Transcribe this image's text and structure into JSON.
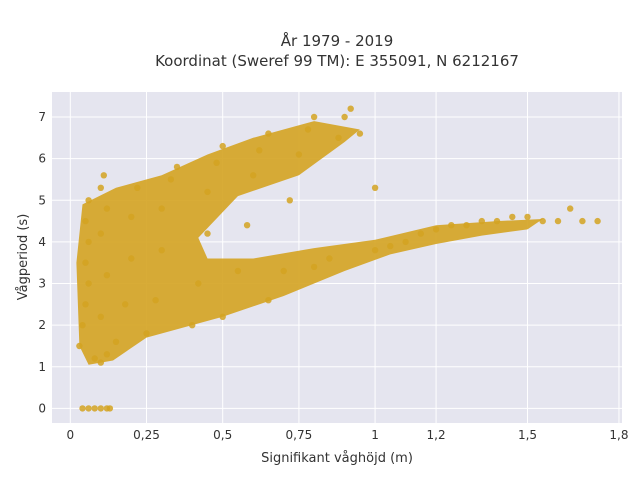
{
  "chart_data": {
    "type": "scatter",
    "title_line1": "År 1979 - 2019",
    "title_line2": "Koordinat (Sweref 99 TM): E 355091, N 6212167",
    "xlabel": "Signifikant våghöjd (m)",
    "ylabel": "Vågperiod (s)",
    "xlim": [
      -0.06,
      1.81
    ],
    "ylim": [
      -0.35,
      7.6
    ],
    "x_ticks": [
      0,
      0.25,
      0.5,
      0.75,
      1,
      1.2,
      1.5,
      1.8
    ],
    "x_tick_labels": [
      "0",
      "0,25",
      "0,5",
      "0,75",
      "1",
      "1,2",
      "1,5",
      "1,8"
    ],
    "y_ticks": [
      0,
      1,
      2,
      3,
      4,
      5,
      6,
      7
    ],
    "y_tick_labels": [
      "0",
      "1",
      "2",
      "3",
      "4",
      "5",
      "6",
      "7"
    ],
    "grid": true,
    "marker_color": "#d4a321",
    "background_color": "#e5e5ef",
    "series": [
      {
        "values": [
          [
            0.03,
            1.5
          ],
          [
            0.04,
            2.0
          ],
          [
            0.05,
            2.5
          ],
          [
            0.06,
            3.0
          ],
          [
            0.05,
            3.5
          ],
          [
            0.06,
            4.0
          ],
          [
            0.05,
            4.5
          ],
          [
            0.06,
            5.0
          ],
          [
            0.08,
            1.2
          ],
          [
            0.1,
            1.1
          ],
          [
            0.12,
            1.3
          ],
          [
            0.1,
            2.2
          ],
          [
            0.12,
            3.2
          ],
          [
            0.1,
            4.2
          ],
          [
            0.12,
            4.8
          ],
          [
            0.1,
            5.3
          ],
          [
            0.11,
            5.6
          ],
          [
            0.15,
            1.6
          ],
          [
            0.18,
            2.5
          ],
          [
            0.2,
            3.6
          ],
          [
            0.2,
            4.6
          ],
          [
            0.22,
            5.3
          ],
          [
            0.25,
            1.8
          ],
          [
            0.28,
            2.6
          ],
          [
            0.3,
            3.8
          ],
          [
            0.3,
            4.8
          ],
          [
            0.33,
            5.5
          ],
          [
            0.35,
            5.8
          ],
          [
            0.4,
            2.0
          ],
          [
            0.42,
            3.0
          ],
          [
            0.45,
            4.2
          ],
          [
            0.45,
            5.2
          ],
          [
            0.48,
            5.9
          ],
          [
            0.5,
            6.3
          ],
          [
            0.5,
            2.2
          ],
          [
            0.55,
            3.3
          ],
          [
            0.58,
            4.4
          ],
          [
            0.6,
            5.6
          ],
          [
            0.62,
            6.2
          ],
          [
            0.65,
            6.6
          ],
          [
            0.65,
            2.6
          ],
          [
            0.7,
            3.3
          ],
          [
            0.72,
            5.0
          ],
          [
            0.75,
            6.1
          ],
          [
            0.78,
            6.7
          ],
          [
            0.8,
            7.0
          ],
          [
            0.8,
            3.4
          ],
          [
            0.85,
            3.6
          ],
          [
            0.88,
            6.5
          ],
          [
            0.9,
            7.0
          ],
          [
            0.92,
            7.2
          ],
          [
            0.95,
            6.6
          ],
          [
            1.0,
            5.3
          ],
          [
            1.0,
            3.8
          ],
          [
            1.05,
            3.9
          ],
          [
            1.1,
            4.0
          ],
          [
            1.15,
            4.2
          ],
          [
            1.2,
            4.3
          ],
          [
            1.25,
            4.4
          ],
          [
            1.3,
            4.4
          ],
          [
            1.35,
            4.5
          ],
          [
            1.4,
            4.5
          ],
          [
            1.45,
            4.6
          ],
          [
            1.5,
            4.6
          ],
          [
            1.55,
            4.5
          ],
          [
            1.6,
            4.5
          ],
          [
            1.64,
            4.8
          ],
          [
            1.68,
            4.5
          ],
          [
            1.73,
            4.5
          ],
          [
            0.04,
            0.0
          ],
          [
            0.06,
            0.0
          ],
          [
            0.08,
            0.0
          ],
          [
            0.1,
            0.0
          ],
          [
            0.12,
            0.0
          ],
          [
            0.13,
            0.0
          ]
        ]
      }
    ]
  }
}
